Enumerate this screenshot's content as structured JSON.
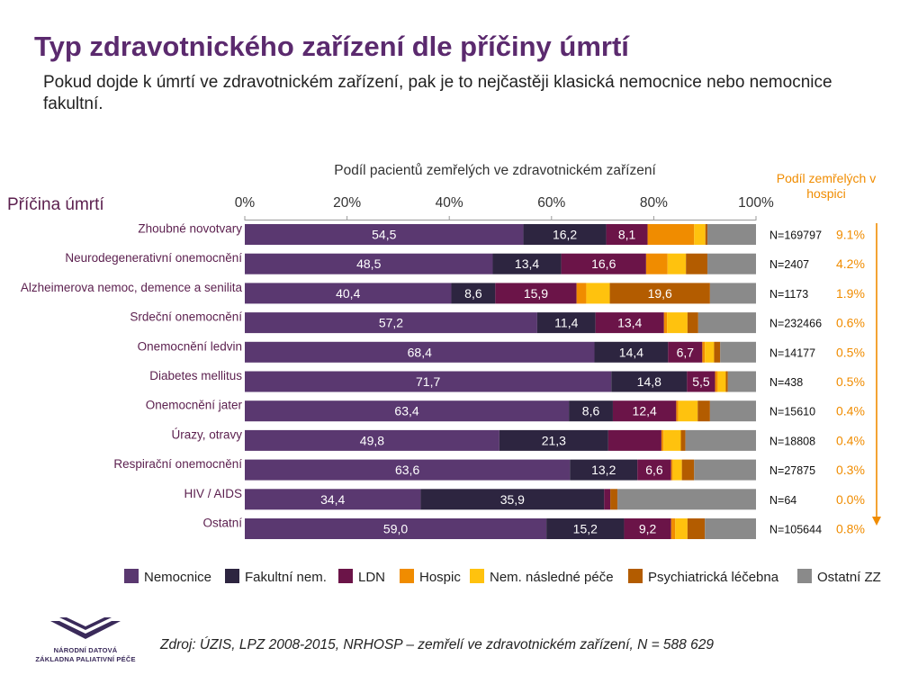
{
  "title": "Typ zdravotnického zařízení dle příčiny úmrtí",
  "subtitle": "Pokud dojde k úmrtí ve zdravotnickém zařízení, pak je to nejčastěji klasická nemocnice nebo nemocnice fakultní.",
  "source": "Zdroj: ÚZIS, LPZ 2008-2015, NRHOSP – zemřelí ve zdravotnickém zařízení, N = 588 629",
  "logo": {
    "line1": "NÁRODNÍ DATOVÁ",
    "line2": "ZÁKLADNA PALIATIVNÍ PÉČE",
    "color": "#3a2a5a"
  },
  "colors": {
    "title": "#5b2a6e",
    "category_label": "#5b1f4e",
    "hospice_accent": "#f08c00"
  },
  "chart_data": {
    "type": "bar",
    "orientation": "horizontal",
    "stacked": true,
    "normalized": true,
    "xlabel": "Podíl pacientů zemřelých ve zdravotnickém zařízení",
    "ylabel": "Příčina úmrtí",
    "xlim": [
      0,
      100
    ],
    "x_ticks": [
      "0%",
      "20%",
      "40%",
      "60%",
      "80%",
      "100%"
    ],
    "legend_position": "bottom",
    "categories": [
      "Zhoubné novotvary",
      "Neurodegenerativní onemocnění",
      "Alzheimerova nemoc, demence a senilita",
      "Srdeční onemocnění",
      "Onemocnění ledvin",
      "Diabetes mellitus",
      "Onemocnění jater",
      "Úrazy, otravy",
      "Respirační onemocnění",
      "HIV / AIDS",
      "Ostatní"
    ],
    "series": [
      {
        "name": "Nemocnice",
        "color": "#5a3870",
        "values": [
          54.5,
          48.5,
          40.4,
          57.2,
          68.4,
          71.7,
          63.4,
          49.8,
          63.6,
          34.4,
          59.0
        ],
        "labels": [
          "54,5",
          "48,5",
          "40,4",
          "57,2",
          "68,4",
          "71,7",
          "63,4",
          "49,8",
          "63,6",
          "34,4",
          "59,0"
        ]
      },
      {
        "name": "Fakultní nem.",
        "color": "#2d2540",
        "values": [
          16.2,
          13.4,
          8.6,
          11.4,
          14.4,
          14.8,
          8.6,
          21.3,
          13.2,
          35.9,
          15.2
        ],
        "labels": [
          "16,2",
          "13,4",
          "8,6",
          "11,4",
          "14,4",
          "14,8",
          "8,6",
          "21,3",
          "13,2",
          "35,9",
          "15,2"
        ]
      },
      {
        "name": "LDN",
        "color": "#6b1448",
        "values": [
          8.1,
          16.6,
          15.9,
          13.4,
          6.7,
          5.5,
          12.4,
          10.4,
          6.6,
          1.2,
          9.2
        ],
        "labels": [
          "8,1",
          "16,6",
          "15,9",
          "13,4",
          "6,7",
          "5,5",
          "12,4",
          "",
          "6,6",
          "",
          "9,2"
        ]
      },
      {
        "name": "Hospic",
        "color": "#f08c00",
        "values": [
          9.1,
          4.2,
          1.9,
          0.6,
          0.5,
          0.5,
          0.4,
          0.4,
          0.3,
          0.0,
          0.8
        ],
        "labels": [
          "",
          "",
          "",
          "",
          "",
          "",
          "",
          "",
          "",
          "",
          ""
        ]
      },
      {
        "name": "Nem. následné péče",
        "color": "#ffc20e",
        "values": [
          2.2,
          3.6,
          4.6,
          4.0,
          1.8,
          1.6,
          3.8,
          3.4,
          1.8,
          0.0,
          2.4
        ],
        "labels": [
          "",
          "",
          "",
          "",
          "",
          "",
          "",
          "",
          "",
          "",
          ""
        ]
      },
      {
        "name": "Psychiatrická léčebna",
        "color": "#b35c00",
        "values": [
          0.4,
          4.2,
          19.6,
          2.1,
          1.2,
          0.4,
          2.4,
          0.9,
          2.4,
          1.4,
          3.4
        ],
        "labels": [
          "",
          "",
          "19,6",
          "",
          "",
          "",
          "",
          "",
          "",
          "",
          ""
        ]
      },
      {
        "name": "Ostatní ZZ",
        "color": "#8a8a8a",
        "values": [
          9.5,
          9.5,
          9.0,
          11.3,
          7.0,
          5.5,
          9.0,
          13.8,
          12.1,
          27.1,
          10.0
        ],
        "labels": [
          "",
          "",
          "",
          "",
          "",
          "",
          "",
          "",
          "",
          "",
          ""
        ]
      }
    ],
    "n_labels": [
      "N=169797",
      "N=2407",
      "N=1173",
      "N=232466",
      "N=14177",
      "N=438",
      "N=15610",
      "N=18808",
      "N=27875",
      "N=64",
      "N=105644"
    ],
    "hospice_share_title": "Podíl zemřelých v hospici",
    "hospice_share": [
      "9.1%",
      "4.2%",
      "1.9%",
      "0.6%",
      "0.5%",
      "0.5%",
      "0.4%",
      "0.4%",
      "0.3%",
      "0.0%",
      "0.8%"
    ]
  }
}
